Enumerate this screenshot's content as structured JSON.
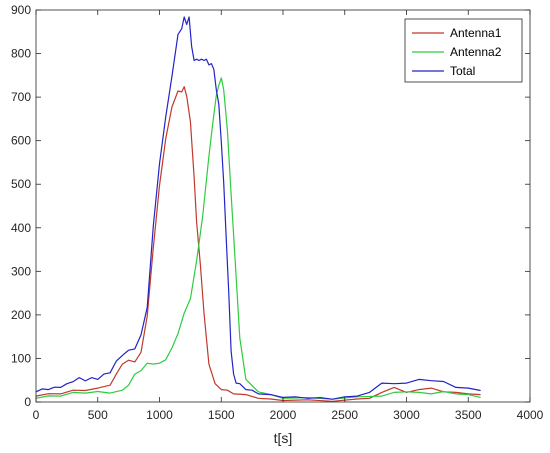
{
  "chart_data": {
    "type": "line",
    "title": "",
    "xlabel": "t[s]",
    "ylabel": "",
    "xlim": [
      0,
      4000
    ],
    "ylim": [
      0,
      900
    ],
    "xticks": [
      0,
      500,
      1000,
      1500,
      2000,
      2500,
      3000,
      3500,
      4000
    ],
    "yticks": [
      0,
      100,
      200,
      300,
      400,
      500,
      600,
      700,
      800,
      900
    ],
    "grid": false,
    "legend_position": "top-right",
    "series": [
      {
        "name": "Antenna1",
        "color": "#c0392b",
        "x": [
          0,
          100,
          200,
          300,
          400,
          500,
          600,
          650,
          700,
          750,
          800,
          850,
          900,
          950,
          1000,
          1050,
          1100,
          1150,
          1180,
          1200,
          1220,
          1250,
          1280,
          1300,
          1330,
          1360,
          1400,
          1450,
          1500,
          1550,
          1600,
          1700,
          1800,
          1900,
          2000,
          2200,
          2400,
          2600,
          2700,
          2800,
          2900,
          3000,
          3100,
          3200,
          3300,
          3400,
          3500,
          3600
        ],
        "y": [
          15,
          17,
          20,
          25,
          28,
          30,
          40,
          60,
          90,
          92,
          95,
          110,
          200,
          350,
          500,
          600,
          680,
          710,
          715,
          720,
          705,
          640,
          520,
          410,
          320,
          200,
          90,
          40,
          30,
          25,
          20,
          15,
          10,
          5,
          5,
          3,
          3,
          5,
          10,
          20,
          35,
          20,
          30,
          30,
          25,
          20,
          20,
          15
        ]
      },
      {
        "name": "Antenna2",
        "color": "#2ecc40",
        "x": [
          0,
          100,
          200,
          300,
          400,
          500,
          600,
          700,
          750,
          800,
          850,
          900,
          950,
          1000,
          1050,
          1100,
          1150,
          1200,
          1250,
          1300,
          1350,
          1400,
          1430,
          1460,
          1480,
          1500,
          1520,
          1550,
          1580,
          1600,
          1650,
          1700,
          1800,
          1900,
          2000,
          2200,
          2400,
          2600,
          2800,
          2900,
          3000,
          3100,
          3200,
          3300,
          3400,
          3500,
          3600
        ],
        "y": [
          10,
          12,
          15,
          20,
          22,
          22,
          22,
          25,
          40,
          60,
          75,
          85,
          90,
          85,
          100,
          120,
          160,
          200,
          240,
          320,
          430,
          560,
          640,
          700,
          730,
          740,
          720,
          620,
          480,
          380,
          150,
          50,
          25,
          15,
          10,
          8,
          8,
          10,
          15,
          20,
          25,
          20,
          20,
          22,
          20,
          15,
          12
        ]
      },
      {
        "name": "Total",
        "color": "#2323c8",
        "x": [
          0,
          50,
          100,
          150,
          200,
          250,
          300,
          350,
          400,
          450,
          500,
          550,
          600,
          650,
          700,
          750,
          800,
          850,
          900,
          950,
          1000,
          1050,
          1100,
          1150,
          1180,
          1200,
          1220,
          1240,
          1260,
          1280,
          1300,
          1320,
          1340,
          1360,
          1380,
          1400,
          1420,
          1440,
          1460,
          1480,
          1500,
          1520,
          1540,
          1560,
          1580,
          1600,
          1620,
          1650,
          1700,
          1750,
          1800,
          1900,
          2000,
          2100,
          2200,
          2300,
          2400,
          2500,
          2600,
          2700,
          2800,
          2900,
          3000,
          3100,
          3200,
          3300,
          3400,
          3500,
          3600
        ],
        "y": [
          25,
          28,
          30,
          32,
          35,
          40,
          48,
          52,
          50,
          52,
          55,
          60,
          70,
          90,
          110,
          115,
          125,
          150,
          220,
          400,
          550,
          650,
          750,
          840,
          860,
          880,
          870,
          880,
          820,
          780,
          790,
          780,
          790,
          780,
          790,
          770,
          780,
          760,
          720,
          680,
          600,
          500,
          380,
          250,
          120,
          60,
          45,
          40,
          30,
          25,
          20,
          15,
          12,
          10,
          10,
          8,
          8,
          10,
          15,
          20,
          45,
          40,
          45,
          50,
          52,
          45,
          35,
          30,
          28
        ]
      }
    ]
  }
}
